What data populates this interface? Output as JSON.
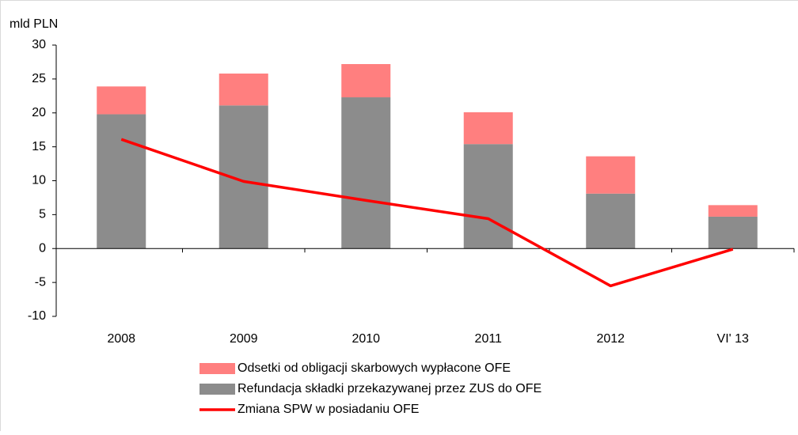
{
  "chart_data": {
    "type": "bar",
    "y_label": "mld PLN",
    "categories": [
      "2008",
      "2009",
      "2010",
      "2011",
      "2012",
      "VI' 13"
    ],
    "series": [
      {
        "name": "Odsetki od obligacji skarbowych wypłacone OFE",
        "type": "bar",
        "color": "#ff7f7f",
        "values": [
          4.1,
          4.7,
          4.9,
          4.7,
          5.5,
          1.7
        ]
      },
      {
        "name": "Refundacja składki przekazywanej przez ZUS do OFE",
        "type": "bar",
        "color": "#8c8c8c",
        "values": [
          19.8,
          21.1,
          22.3,
          15.4,
          8.1,
          4.7
        ]
      },
      {
        "name": "Zmiana SPW w posiadaniu OFE",
        "type": "line",
        "color": "#ff0000",
        "values": [
          16.1,
          9.9,
          7.1,
          4.4,
          -5.5,
          -0.1
        ]
      }
    ],
    "ylim": [
      -10,
      30
    ],
    "yticks": [
      -10,
      -5,
      0,
      5,
      10,
      15,
      20,
      25,
      30
    ]
  }
}
